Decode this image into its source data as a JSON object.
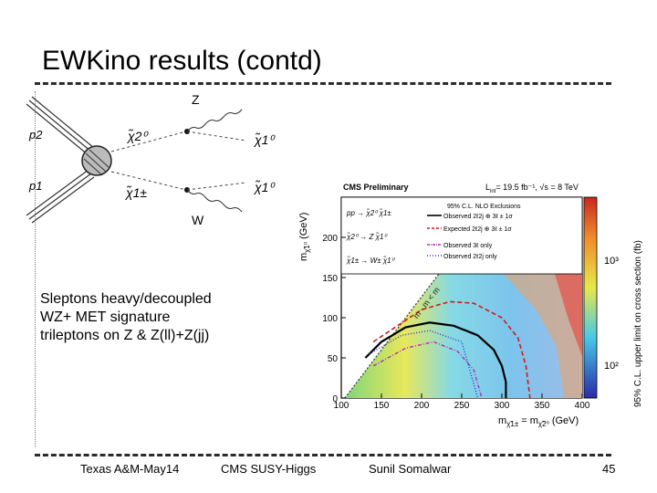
{
  "slide": {
    "title": "EWKino results (contd)",
    "bullets": [
      "Sleptons heavy/decoupled",
      "WZ+ MET  signature",
      "trileptons on Z & Z(ll)+Z(jj)"
    ],
    "footer": {
      "left": "Texas A&M-May14",
      "center": "CMS SUSY-Higgs",
      "author": "Sunil Somalwar",
      "page": "45"
    }
  },
  "diagram": {
    "labels": {
      "p2": "p2",
      "p1": "p1",
      "neutralino2": "χ̃2⁰",
      "chargino1": "χ̃1±",
      "z": "Z",
      "w": "W",
      "lsp_top": "χ̃1⁰",
      "lsp_bottom": "χ̃1⁰"
    }
  },
  "plot": {
    "header": "CMS Preliminary",
    "lumi": "L",
    "lumi_sub": "int",
    "lumi_value": "= 19.5 fb⁻¹, √s = 8 TeV",
    "ylabel": "m",
    "ylabel_suffix": " (GeV)",
    "xlabel": "m",
    "xlabel_eq": " = m",
    "xlabel_suffix": " (GeV)",
    "zlabel": "95% C.L. upper limit on cross section (fb)",
    "diag_label": "m  - m  < m",
    "diag_label_z": "Z",
    "legend": {
      "title": "95% C.L. NLO Exclusions",
      "entries": [
        "Observed 2ℓ2j ⊕ 3ℓ ± 1σ",
        "Expected 2ℓ2j ⊕ 3ℓ ± 1σ",
        "Observed 3ℓ only",
        "Observed 2ℓ2j only"
      ],
      "proc1": "pp → χ̃2⁰ χ̃1±",
      "proc2": "χ̃2⁰ → Z χ̃1⁰",
      "proc3": "χ̃1± → W± χ̃1⁰"
    },
    "x_ticks": [
      "100",
      "150",
      "200",
      "250",
      "300",
      "350",
      "400"
    ],
    "y_ticks": [
      "0",
      "50",
      "100",
      "150",
      "200"
    ],
    "z_ticks": [
      "10²",
      "10³"
    ]
  },
  "chart_data": {
    "type": "heatmap",
    "title": "CMS Preliminary",
    "xlabel": "m(χ̃1±) = m(χ̃2⁰) (GeV)",
    "ylabel": "m(χ̃1⁰) (GeV)",
    "zlabel": "95% C.L. upper limit on cross section (fb)",
    "xlim": [
      100,
      400
    ],
    "ylim": [
      0,
      250
    ],
    "zscale": "log",
    "series": [
      {
        "name": "Observed 2ℓ2j ⊕ 3ℓ",
        "x": [
          130,
          150,
          180,
          210,
          240,
          270,
          290,
          300,
          305,
          305
        ],
        "y": [
          50,
          70,
          88,
          94,
          90,
          78,
          60,
          40,
          20,
          0
        ]
      },
      {
        "name": "Expected 2ℓ2j ⊕ 3ℓ",
        "x": [
          140,
          170,
          200,
          235,
          265,
          300,
          320,
          330,
          335
        ],
        "y": [
          70,
          90,
          110,
          120,
          118,
          100,
          75,
          40,
          0
        ]
      },
      {
        "name": "Observed 3ℓ only",
        "x": [
          140,
          180,
          215,
          245,
          265,
          275
        ],
        "y": [
          40,
          62,
          70,
          58,
          35,
          0
        ]
      },
      {
        "name": "Observed 2ℓ2j only",
        "x": [
          135,
          175,
          210,
          250,
          270
        ],
        "y": [
          55,
          78,
          84,
          70,
          0
        ]
      }
    ]
  }
}
